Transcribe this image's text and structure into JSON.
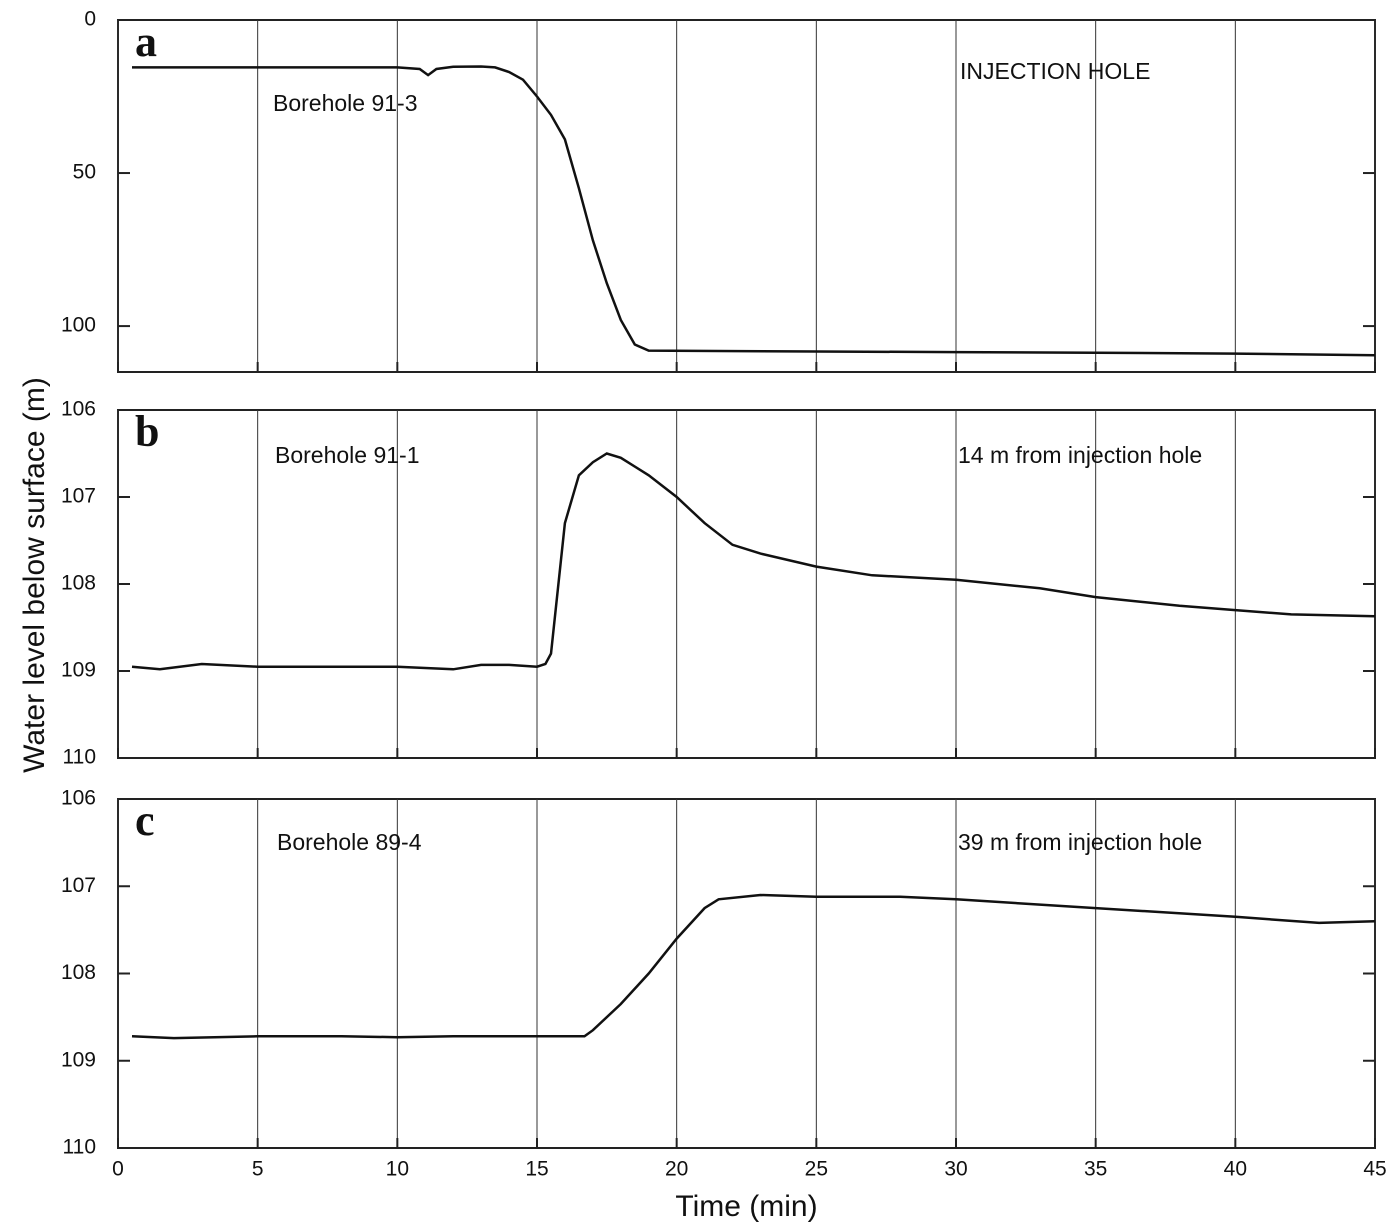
{
  "chart_data": [
    {
      "type": "line",
      "label": "a",
      "annotations": [
        "Borehole 91-3",
        "INJECTION HOLE"
      ],
      "x": [
        0.5,
        5,
        10,
        10.8,
        11.1,
        11.4,
        12,
        13,
        13.5,
        14,
        14.5,
        15,
        15.5,
        16,
        16.5,
        17,
        17.5,
        18,
        18.5,
        19,
        25,
        30,
        35,
        40,
        45
      ],
      "values": [
        15.5,
        15.5,
        15.5,
        16,
        18,
        16,
        15.3,
        15.2,
        15.5,
        17,
        19.5,
        25,
        31,
        39,
        55,
        72,
        86,
        98,
        106,
        108,
        108.3,
        108.5,
        108.7,
        109,
        109.5
      ],
      "color": "#111",
      "xlim": [
        0,
        45
      ],
      "ylim": [
        0,
        115
      ],
      "y_inverted": true,
      "yticks": [
        0,
        50,
        100
      ],
      "xticks": [
        0,
        5,
        10,
        15,
        20,
        25,
        30,
        35,
        40,
        45
      ],
      "xtick_labels": false,
      "grid": true
    },
    {
      "type": "line",
      "label": "b",
      "annotations": [
        "Borehole 91-1",
        "14 m from injection hole"
      ],
      "y_label": "Water level below surface (m)",
      "x": [
        0.5,
        1.5,
        3,
        5,
        8,
        10,
        12,
        13,
        14,
        15,
        15.3,
        15.5,
        16,
        16.5,
        17,
        17.5,
        18,
        19,
        20,
        21,
        22,
        23,
        25,
        27,
        30,
        33,
        35,
        38,
        40,
        42,
        45
      ],
      "values": [
        108.95,
        108.98,
        108.92,
        108.95,
        108.95,
        108.95,
        108.98,
        108.93,
        108.93,
        108.95,
        108.92,
        108.8,
        107.3,
        106.75,
        106.6,
        106.5,
        106.55,
        106.75,
        107.0,
        107.3,
        107.55,
        107.65,
        107.8,
        107.9,
        107.95,
        108.05,
        108.15,
        108.25,
        108.3,
        108.35,
        108.37
      ],
      "color": "#111",
      "xlim": [
        0,
        45
      ],
      "ylim": [
        106,
        110
      ],
      "y_inverted": true,
      "yticks": [
        106,
        107,
        108,
        109,
        110
      ],
      "xticks": [
        0,
        5,
        10,
        15,
        20,
        25,
        30,
        35,
        40,
        45
      ],
      "xtick_labels": false,
      "grid": true
    },
    {
      "type": "line",
      "label": "c",
      "annotations": [
        "Borehole 89-4",
        "39 m from injection hole"
      ],
      "x_label": "Time (min)",
      "x": [
        0.5,
        2,
        5,
        8,
        10,
        12,
        15,
        16.7,
        17,
        18,
        19,
        20,
        21,
        21.5,
        23,
        25,
        28,
        30,
        35,
        40,
        43,
        45
      ],
      "values": [
        108.72,
        108.74,
        108.72,
        108.72,
        108.73,
        108.72,
        108.72,
        108.72,
        108.65,
        108.35,
        108.0,
        107.6,
        107.25,
        107.15,
        107.1,
        107.12,
        107.12,
        107.15,
        107.25,
        107.35,
        107.42,
        107.4
      ],
      "color": "#111",
      "xlim": [
        0,
        45
      ],
      "ylim": [
        106,
        110
      ],
      "y_inverted": true,
      "yticks": [
        106,
        107,
        108,
        109,
        110
      ],
      "xticks": [
        0,
        5,
        10,
        15,
        20,
        25,
        30,
        35,
        40,
        45
      ],
      "xtick_labels": true,
      "grid": true
    }
  ]
}
